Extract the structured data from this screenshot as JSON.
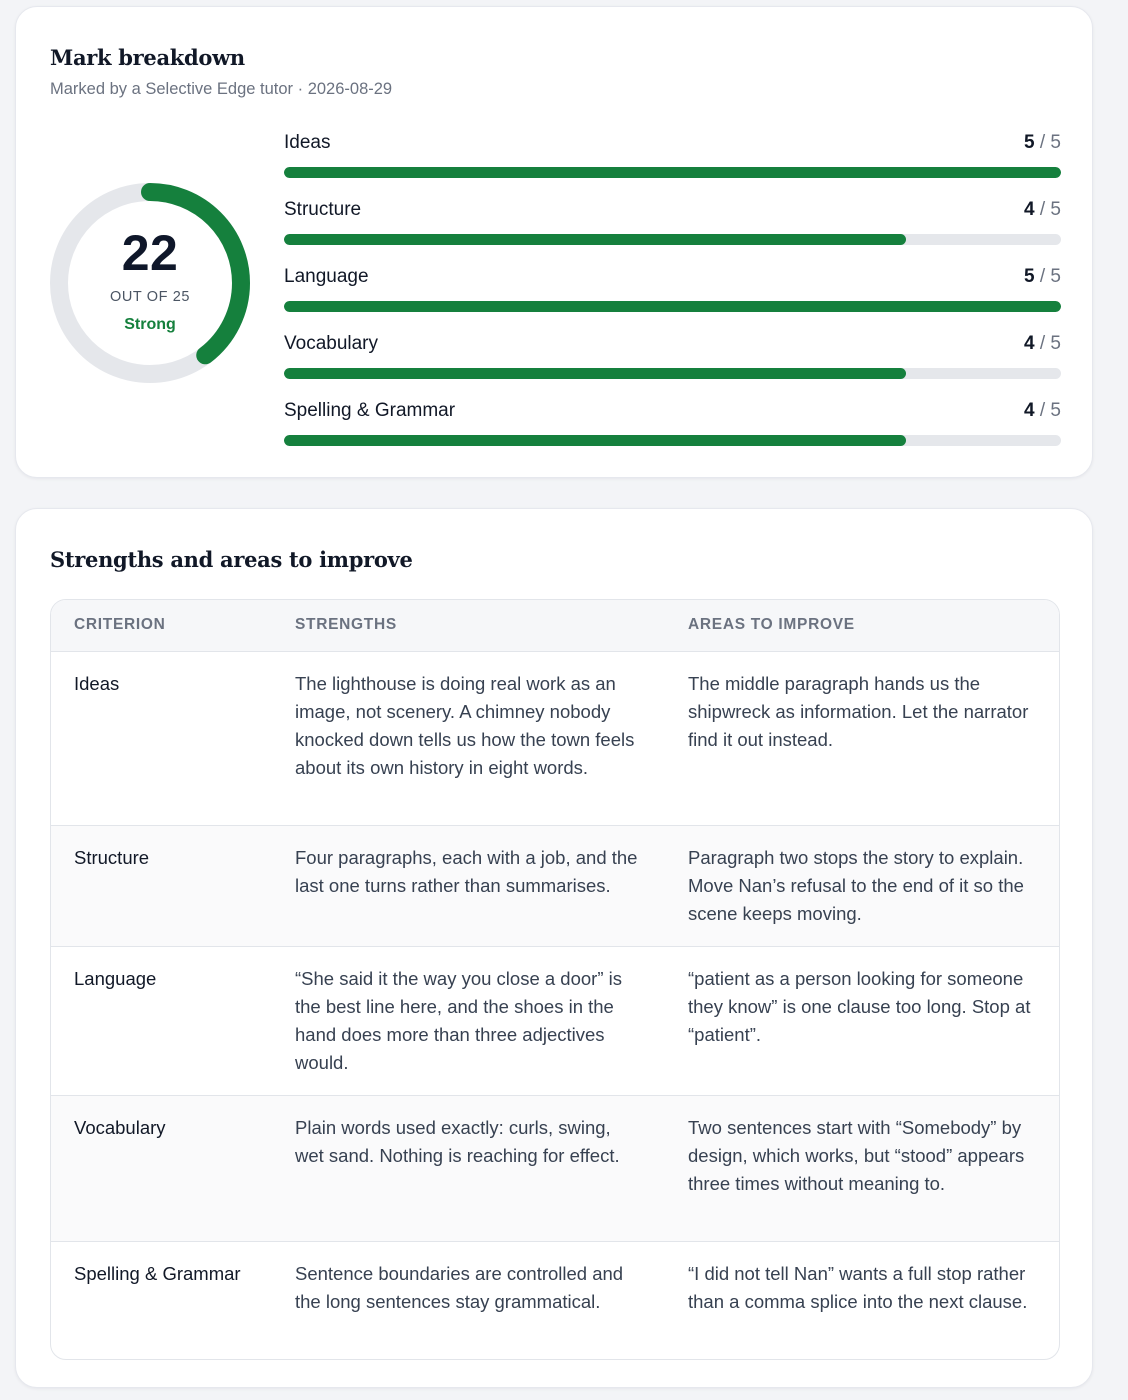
{
  "breakdown": {
    "title": "Mark breakdown",
    "subtitle": "Marked by a Selective Edge tutor · 2026-08-29",
    "total": "22",
    "out_of": "OUT OF 25",
    "rating": "Strong",
    "total_fraction": 0.88,
    "accent": "#15803d",
    "criteria": [
      {
        "name": "Ideas",
        "score": "5",
        "sep": "/",
        "max": "5",
        "fraction": 1.0
      },
      {
        "name": "Structure",
        "score": "4",
        "sep": "/",
        "max": "5",
        "fraction": 0.8
      },
      {
        "name": "Language",
        "score": "5",
        "sep": "/",
        "max": "5",
        "fraction": 1.0
      },
      {
        "name": "Vocabulary",
        "score": "4",
        "sep": "/",
        "max": "5",
        "fraction": 0.8
      },
      {
        "name": "Spelling & Grammar",
        "score": "4",
        "sep": "/",
        "max": "5",
        "fraction": 0.8
      }
    ]
  },
  "feedback": {
    "title": "Strengths and areas to improve",
    "headers": [
      "CRITERION",
      "STRENGTHS",
      "AREAS TO IMPROVE"
    ],
    "rows": [
      {
        "criterion": "Ideas",
        "strengths": "The lighthouse is doing real work as an image, not scenery. A chimney nobody knocked down tells us how the town feels about its own history in eight words.",
        "improve": "The middle paragraph hands us the shipwreck as information. Let the narrator find it out instead."
      },
      {
        "criterion": "Structure",
        "strengths": "Four paragraphs, each with a job, and the last one turns rather than summarises.",
        "improve": "Paragraph two stops the story to explain. Move Nan’s refusal to the end of it so the scene keeps moving."
      },
      {
        "criterion": "Language",
        "strengths": "“She said it the way you close a door” is the best line here, and the shoes in the hand does more than three adjectives would.",
        "improve": "“patient as a person looking for someone they know” is one clause too long. Stop at “patient”."
      },
      {
        "criterion": "Vocabulary",
        "strengths": "Plain words used exactly: curls, swing, wet sand. Nothing is reaching for effect.",
        "improve": "Two sentences start with “Somebody” by design, which works, but “stood” appears three times without meaning to."
      },
      {
        "criterion": "Spelling & Grammar",
        "strengths": "Sentence boundaries are controlled and the long sentences stay grammatical.",
        "improve": "“I did not tell Nan” wants a full stop rather than a comma splice into the next clause."
      }
    ]
  }
}
